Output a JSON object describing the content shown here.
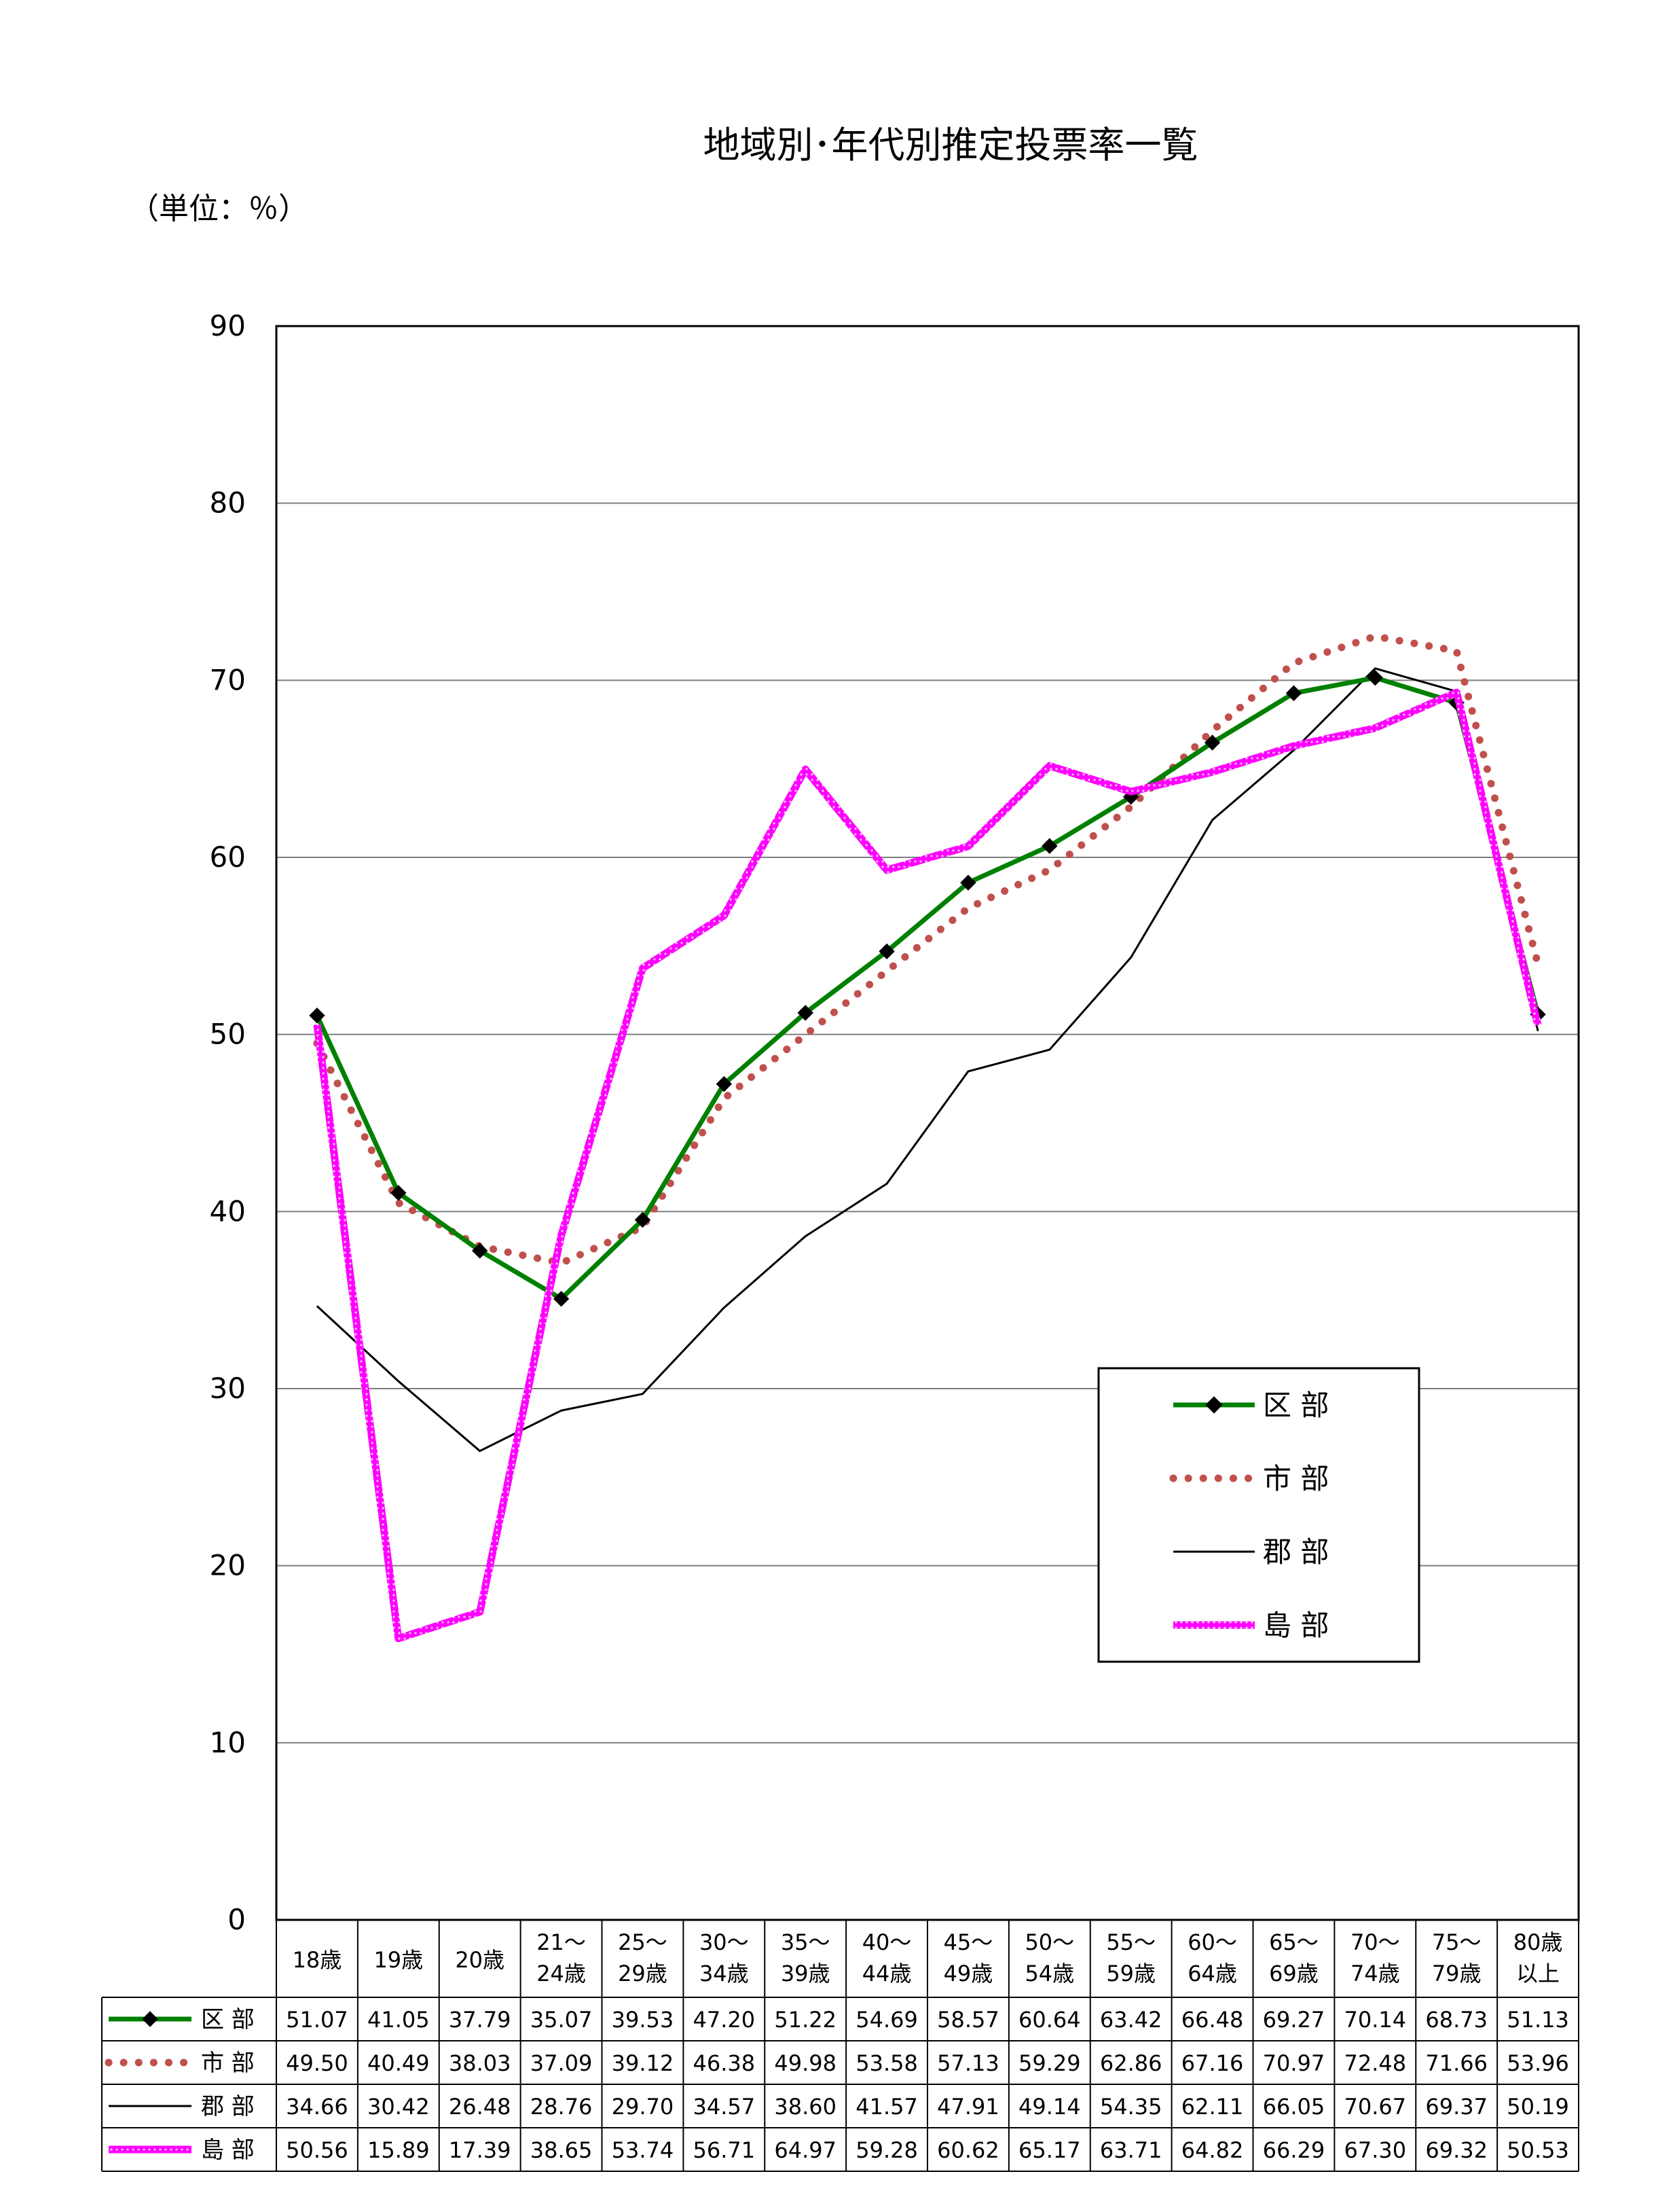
{
  "title": "地域別･年代別推定投票率一覧",
  "unit_label": "（単位：％）",
  "chart_data": {
    "type": "line",
    "title": "地域別･年代別推定投票率一覧",
    "xlabel": "",
    "ylabel": "",
    "ylim": [
      0,
      90
    ],
    "yticks": [
      0,
      10,
      20,
      30,
      40,
      50,
      60,
      70,
      80,
      90
    ],
    "grid": true,
    "legend_position": "right, lower-middle (inside plot)",
    "categories": [
      [
        "18歳"
      ],
      [
        "19歳"
      ],
      [
        "20歳"
      ],
      [
        "21～",
        "24歳"
      ],
      [
        "25～",
        "29歳"
      ],
      [
        "30～",
        "34歳"
      ],
      [
        "35～",
        "39歳"
      ],
      [
        "40～",
        "44歳"
      ],
      [
        "45～",
        "49歳"
      ],
      [
        "50～",
        "54歳"
      ],
      [
        "55～",
        "59歳"
      ],
      [
        "60～",
        "64歳"
      ],
      [
        "65～",
        "69歳"
      ],
      [
        "70～",
        "74歳"
      ],
      [
        "75～",
        "79歳"
      ],
      [
        "80歳",
        "以上"
      ]
    ],
    "series": [
      {
        "name": "区 部",
        "style": "green-diamond",
        "color": "#008000",
        "values": [
          51.07,
          41.05,
          37.79,
          35.07,
          39.53,
          47.2,
          51.22,
          54.69,
          58.57,
          60.64,
          63.42,
          66.48,
          69.27,
          70.14,
          68.73,
          51.13
        ],
        "labels": [
          "51.07",
          "41.05",
          "37.79",
          "35.07",
          "39.53",
          "47.20",
          "51.22",
          "54.69",
          "58.57",
          "60.64",
          "63.42",
          "66.48",
          "69.27",
          "70.14",
          "68.73",
          "51.13"
        ]
      },
      {
        "name": "市 部",
        "style": "brown-dotted",
        "color": "#C0504D",
        "values": [
          49.5,
          40.49,
          38.03,
          37.09,
          39.12,
          46.38,
          49.98,
          53.58,
          57.13,
          59.29,
          62.86,
          67.16,
          70.97,
          72.48,
          71.66,
          53.96
        ],
        "labels": [
          "49.50",
          "40.49",
          "38.03",
          "37.09",
          "39.12",
          "46.38",
          "49.98",
          "53.58",
          "57.13",
          "59.29",
          "62.86",
          "67.16",
          "70.97",
          "72.48",
          "71.66",
          "53.96"
        ]
      },
      {
        "name": "郡 部",
        "style": "black-thin",
        "color": "#000000",
        "values": [
          34.66,
          30.42,
          26.48,
          28.76,
          29.7,
          34.57,
          38.6,
          41.57,
          47.91,
          49.14,
          54.35,
          62.11,
          66.05,
          70.67,
          69.37,
          50.19
        ],
        "labels": [
          "34.66",
          "30.42",
          "26.48",
          "28.76",
          "29.70",
          "34.57",
          "38.60",
          "41.57",
          "47.91",
          "49.14",
          "54.35",
          "62.11",
          "66.05",
          "70.67",
          "69.37",
          "50.19"
        ]
      },
      {
        "name": "島 部",
        "style": "magenta-thick",
        "color": "#FF00FF",
        "values": [
          50.56,
          15.89,
          17.39,
          38.65,
          53.74,
          56.71,
          64.97,
          59.28,
          60.62,
          65.17,
          63.71,
          64.82,
          66.29,
          67.3,
          69.32,
          50.53
        ],
        "labels": [
          "50.56",
          "15.89",
          "17.39",
          "38.65",
          "53.74",
          "56.71",
          "64.97",
          "59.28",
          "60.62",
          "65.17",
          "63.71",
          "64.82",
          "66.29",
          "67.30",
          "69.32",
          "50.53"
        ]
      }
    ]
  }
}
